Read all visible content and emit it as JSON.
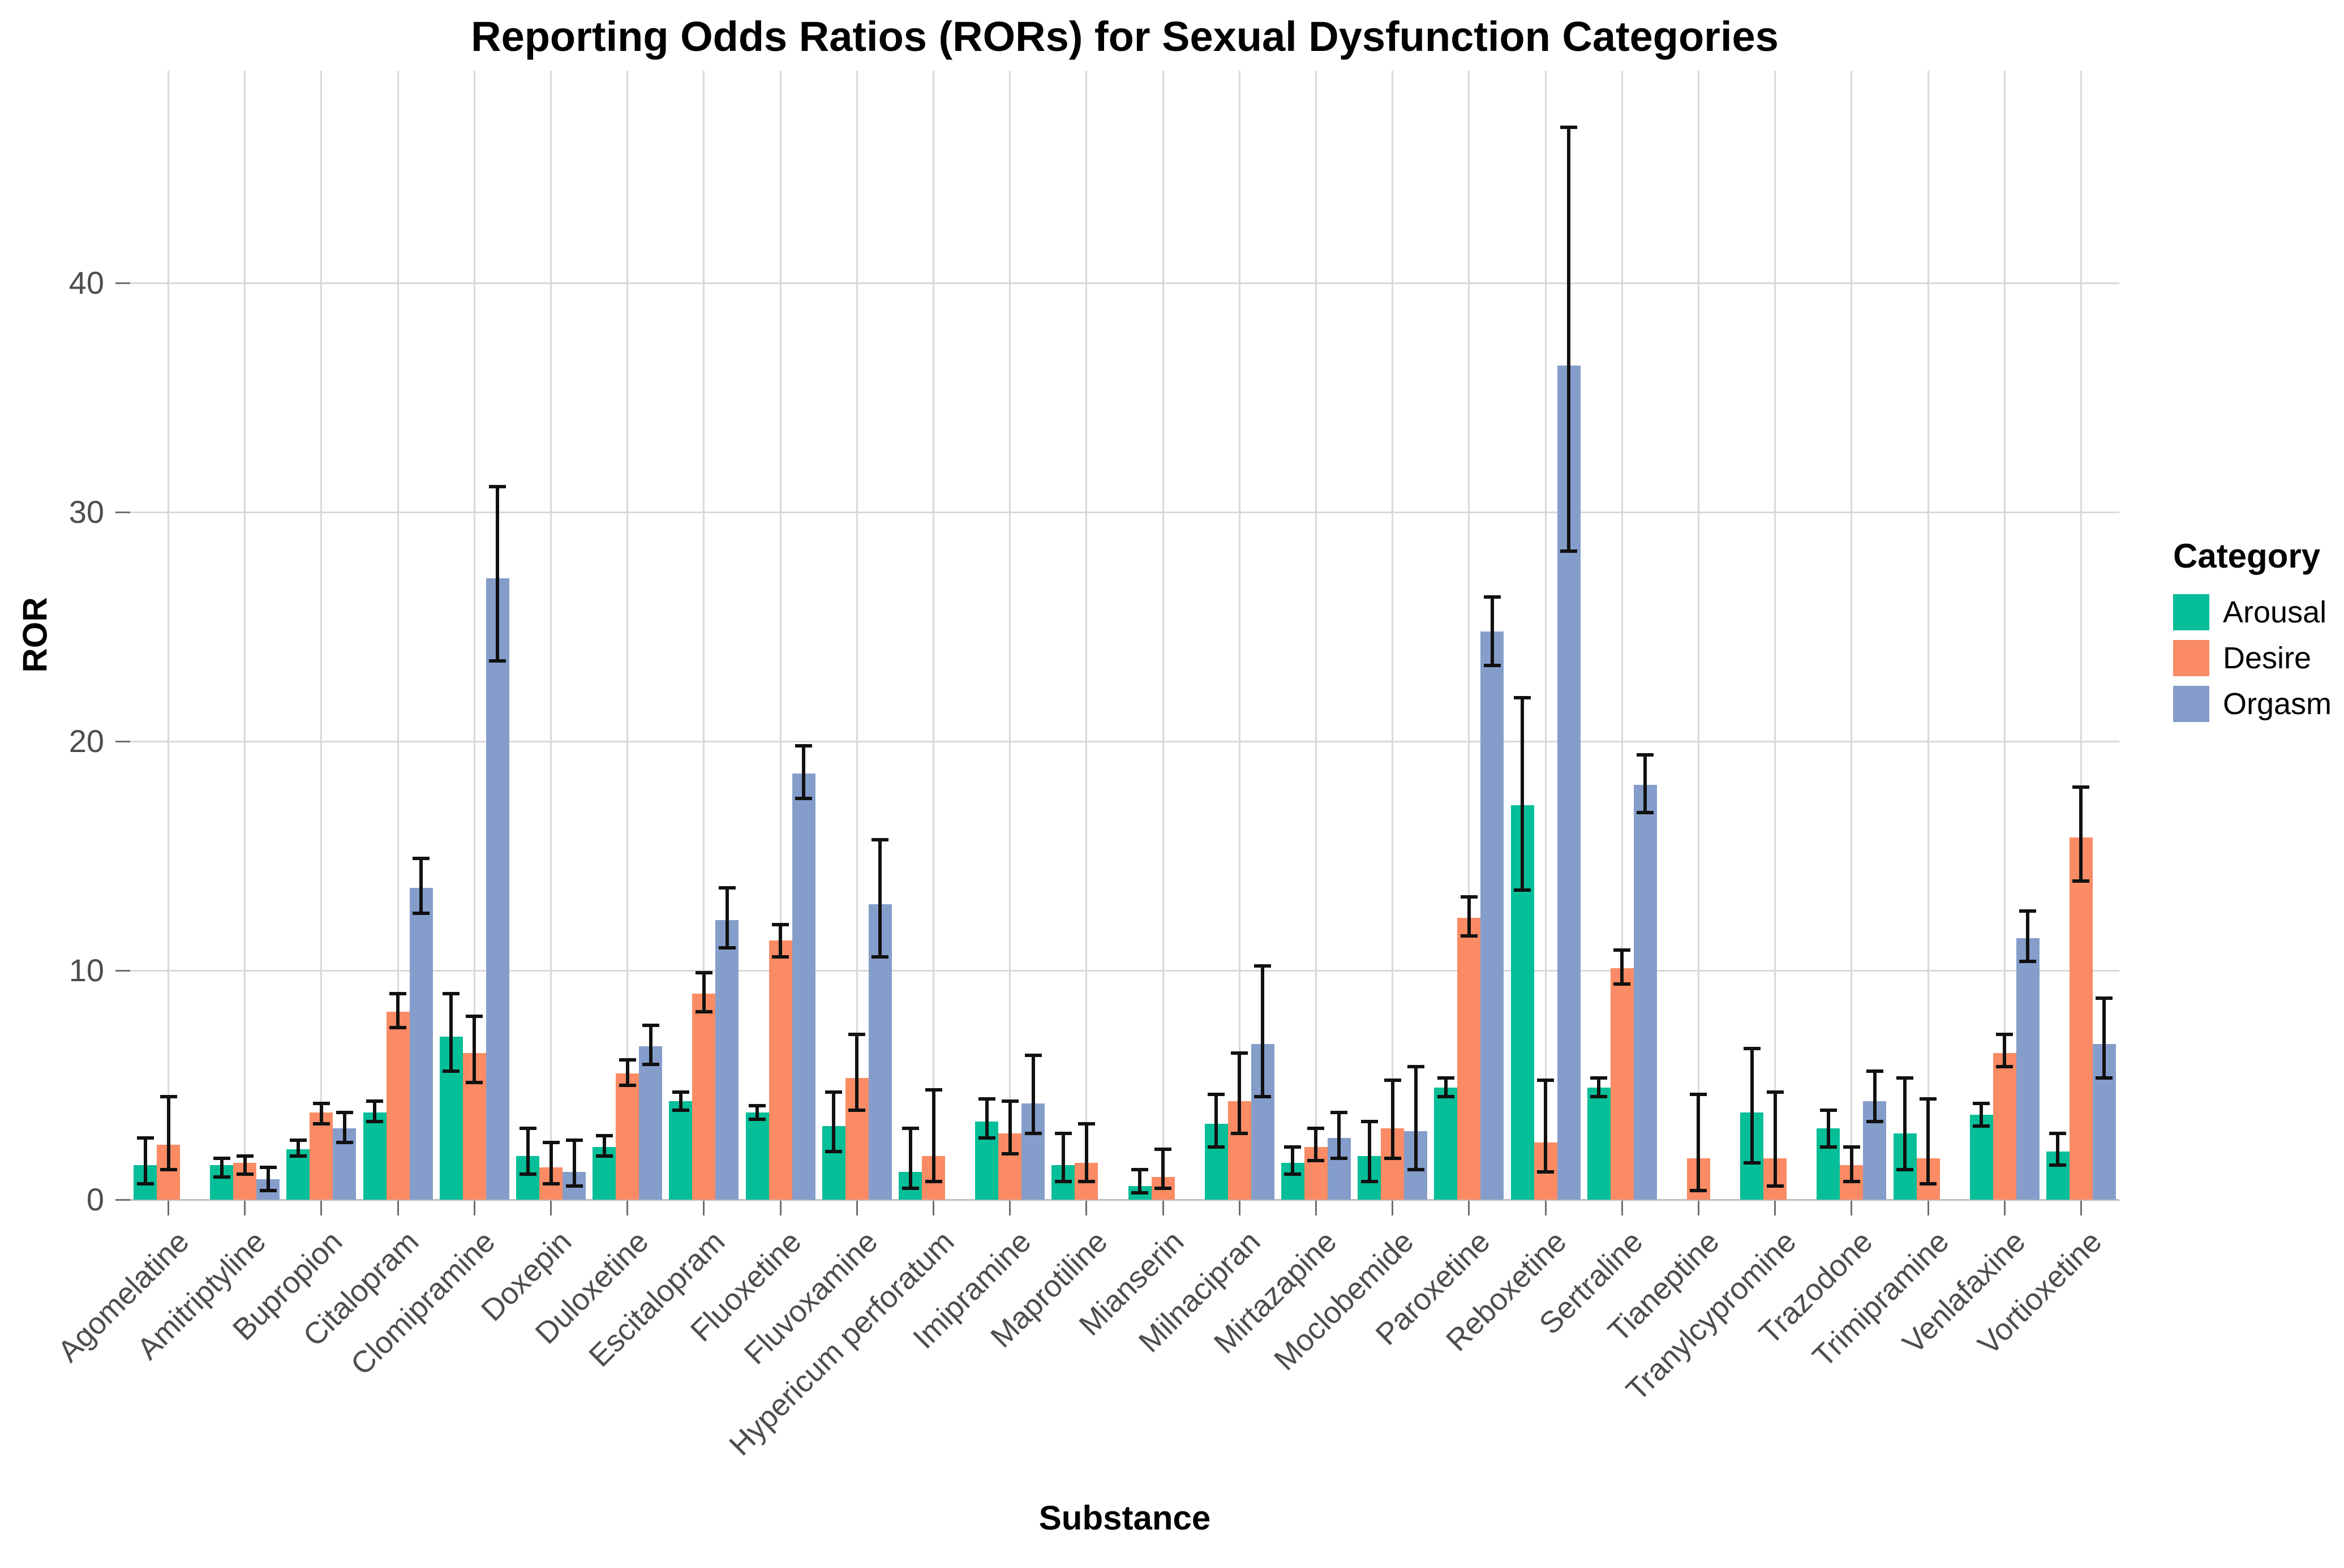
{
  "title": "Reporting Odds Ratios (RORs) for Sexual Dysfunction Categories",
  "chart_data": {
    "type": "bar",
    "title": "Reporting Odds Ratios (RORs) for Sexual Dysfunction Categories",
    "xlabel": "Substance",
    "ylabel": "ROR",
    "ylim": [
      0,
      49.2
    ],
    "yticks": [
      0,
      10,
      20,
      30,
      40
    ],
    "grid": true,
    "legend_title": "Category",
    "legend_position": "right",
    "error_bars": true,
    "categories": [
      "Agomelatine",
      "Amitriptyline",
      "Bupropion",
      "Citalopram",
      "Clomipramine",
      "Doxepin",
      "Duloxetine",
      "Escitalopram",
      "Fluoxetine",
      "Fluvoxamine",
      "Hypericum perforatum",
      "Imipramine",
      "Maprotiline",
      "Mianserin",
      "Milnacipran",
      "Mirtazapine",
      "Moclobemide",
      "Paroxetine",
      "Reboxetine",
      "Sertraline",
      "Tianeptine",
      "Tranylcypromine",
      "Trazodone",
      "Trimipramine",
      "Venlafaxine",
      "Vortioxetine"
    ],
    "series": [
      {
        "name": "Arousal",
        "color": "#06be97",
        "values": [
          1.5,
          1.5,
          2.2,
          3.8,
          7.1,
          1.9,
          2.3,
          4.3,
          3.8,
          3.2,
          1.2,
          3.4,
          1.5,
          0.6,
          3.3,
          1.6,
          1.9,
          4.9,
          17.2,
          4.9,
          null,
          3.8,
          3.1,
          2.9,
          3.7,
          2.1
        ],
        "ci_low": [
          0.7,
          1.0,
          1.9,
          3.4,
          5.6,
          1.1,
          1.9,
          3.9,
          3.5,
          2.1,
          0.5,
          2.7,
          0.8,
          0.3,
          2.3,
          1.1,
          0.8,
          4.5,
          13.5,
          4.5,
          null,
          1.6,
          2.3,
          1.3,
          3.2,
          1.5
        ],
        "ci_high": [
          2.7,
          1.8,
          2.6,
          4.3,
          9.0,
          3.1,
          2.8,
          4.7,
          4.1,
          4.7,
          3.1,
          4.4,
          2.9,
          1.3,
          4.6,
          2.3,
          3.4,
          5.3,
          21.9,
          5.3,
          null,
          6.6,
          3.9,
          5.3,
          4.2,
          2.9
        ]
      },
      {
        "name": "Desire",
        "color": "#fa8b64",
        "values": [
          2.4,
          1.6,
          3.8,
          8.2,
          6.4,
          1.4,
          5.5,
          9.0,
          11.3,
          5.3,
          1.9,
          2.9,
          1.6,
          1.0,
          4.3,
          2.3,
          3.1,
          12.3,
          2.5,
          10.1,
          1.8,
          1.8,
          1.5,
          1.8,
          6.4,
          15.8
        ],
        "ci_low": [
          1.3,
          1.1,
          3.3,
          7.5,
          5.1,
          0.7,
          5.0,
          8.2,
          10.6,
          3.9,
          0.8,
          2.0,
          0.8,
          0.5,
          2.9,
          1.7,
          1.8,
          11.5,
          1.2,
          9.4,
          0.4,
          0.6,
          0.8,
          0.7,
          5.8,
          13.9
        ],
        "ci_high": [
          4.5,
          1.9,
          4.2,
          9.0,
          8.0,
          2.5,
          6.1,
          9.9,
          12.0,
          7.2,
          4.8,
          4.3,
          3.3,
          2.2,
          6.4,
          3.1,
          5.2,
          13.2,
          5.2,
          10.9,
          4.6,
          4.7,
          2.3,
          4.4,
          7.2,
          18.0
        ]
      },
      {
        "name": "Orgasm",
        "color": "#859dca",
        "values": [
          null,
          0.9,
          3.1,
          13.6,
          27.1,
          1.2,
          6.7,
          12.2,
          18.6,
          12.9,
          null,
          4.2,
          null,
          null,
          6.8,
          2.7,
          3.0,
          24.8,
          36.4,
          18.1,
          null,
          null,
          4.3,
          null,
          11.4,
          6.8
        ],
        "ci_low": [
          null,
          0.4,
          2.5,
          12.5,
          23.5,
          0.6,
          5.9,
          11.0,
          17.5,
          10.6,
          null,
          2.9,
          null,
          null,
          4.5,
          1.8,
          1.3,
          23.3,
          28.3,
          16.9,
          null,
          null,
          3.4,
          null,
          10.4,
          5.3
        ],
        "ci_high": [
          null,
          1.4,
          3.8,
          14.9,
          31.1,
          2.6,
          7.6,
          13.6,
          19.8,
          15.7,
          null,
          6.3,
          null,
          null,
          10.2,
          3.8,
          5.8,
          26.3,
          46.8,
          19.4,
          null,
          null,
          5.6,
          null,
          12.6,
          8.8
        ]
      }
    ]
  },
  "legend": {
    "title": "Category",
    "items": [
      {
        "label": "Arousal",
        "color": "#06be97"
      },
      {
        "label": "Desire",
        "color": "#fa8b64"
      },
      {
        "label": "Orgasm",
        "color": "#859dca"
      }
    ]
  }
}
